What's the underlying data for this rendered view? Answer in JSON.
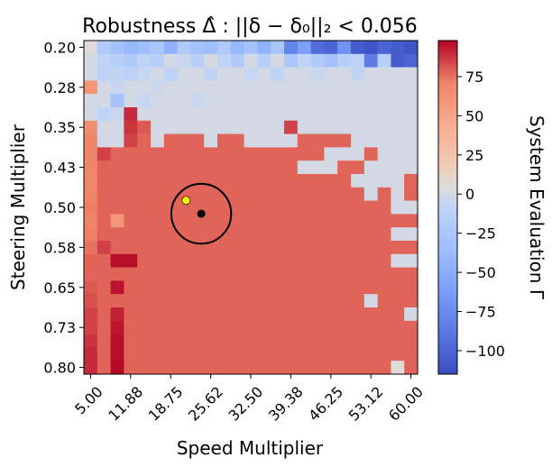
{
  "chart_data": {
    "type": "heatmap",
    "title": "Robustness Δ̂ : ||δ − δ₀||₂ < 0.056",
    "xlabel": "Speed Multiplier",
    "ylabel": "Steering Multiplier",
    "colorbar_label": "System Evaluation Γ",
    "colormap": "coolwarm",
    "x_tick_labels": [
      "5.00",
      "11.88",
      "18.75",
      "25.62",
      "32.50",
      "39.38",
      "46.25",
      "53.12",
      "60.00"
    ],
    "y_tick_labels": [
      "0.20",
      "0.28",
      "0.35",
      "0.43",
      "0.50",
      "0.58",
      "0.65",
      "0.73",
      "0.80"
    ],
    "x_range": [
      5.0,
      60.0
    ],
    "y_range": [
      0.2,
      0.8
    ],
    "grid_size": [
      25,
      25
    ],
    "color_range": [
      -115,
      98
    ],
    "colorbar_ticks": [
      75,
      50,
      25,
      0,
      -25,
      -50,
      -75,
      -100
    ],
    "colorbar_tick_labels": [
      "75",
      "50",
      "25",
      "0",
      "−25",
      "−50",
      "−75",
      "−100"
    ],
    "rows": [
      "WWWWWWWWWWWWWWWWWWWWWWWWW",
      "WWWWWWWWWWWWWWWWWWWWWWWWW",
      "WWWWWWWWWWWWWWWWWWWWWWWWW",
      "RWWWWWWWWWWWWWWWWWWWWWWWW",
      "WWWWWWWWWWWWWWWWWWWWWWWWW",
      "WWWRWWWWWWWWWWWWWWWWWWWWW",
      "RWWRRWWWWWWWWWWRWWWWWWWWW",
      "RWWRRWRRRWRRWWWWRRRRWWWWW",
      "RRRRRRRRRRRRRRRRRRWWWRWWW",
      "RRRRRRRRRRRRRRRRWWWRRWWWW",
      "RRRRRRRRRRRRRRRRRRRRWWWWR",
      "RRRRRRRRRRRRRRRRRRRRRWRWR",
      "RRRRRRRRRRRRRRRRRRRRRRRWW",
      "RRRRRRRRRRRRRRRRRRRRRRRRR",
      "RRRRRRRRRRRRRRRRRRRRRRRWW",
      "RRRRRRRRRRRRRRRRRRRRRRRRR",
      "RRRRRRRRRRRRRRRRRRRRRRRWW",
      "RRRRRRRRRRRRRRRRRRRRRRRRR",
      "RRRRRRRRRRRRRRRRRRRRRRRRR",
      "RRRRRRRRRRRRRRRRRRRRRWRRR",
      "RRRRRRRRRRRRRRRRRRRRRRRRW",
      "RRRRRRRRRRRRRRRRRRRRRRRRR",
      "RRRRRRRRRRRRRRRRRRRRRRRRR",
      "RRRRRRRRRRRRRRRRRRRRRRRRR",
      "RRRRRRRRRRRRRRRRRRRRRRRRR"
    ],
    "overrides": [
      {
        "r": 0,
        "c": 0,
        "v": 5
      },
      {
        "r": 0,
        "c": 1,
        "v": -20
      },
      {
        "r": 0,
        "c": 2,
        "v": -30
      },
      {
        "r": 0,
        "c": 3,
        "v": -40
      },
      {
        "r": 0,
        "c": 4,
        "v": -35
      },
      {
        "r": 0,
        "c": 5,
        "v": -25
      },
      {
        "r": 0,
        "c": 6,
        "v": -45
      },
      {
        "r": 0,
        "c": 7,
        "v": -20
      },
      {
        "r": 0,
        "c": 8,
        "v": -30
      },
      {
        "r": 0,
        "c": 9,
        "v": -35
      },
      {
        "r": 0,
        "c": 10,
        "v": -20
      },
      {
        "r": 0,
        "c": 11,
        "v": -40
      },
      {
        "r": 0,
        "c": 12,
        "v": -30
      },
      {
        "r": 0,
        "c": 13,
        "v": -45
      },
      {
        "r": 0,
        "c": 14,
        "v": -25
      },
      {
        "r": 0,
        "c": 15,
        "v": -80
      },
      {
        "r": 0,
        "c": 16,
        "v": -60
      },
      {
        "r": 0,
        "c": 17,
        "v": -95
      },
      {
        "r": 0,
        "c": 18,
        "v": -100
      },
      {
        "r": 0,
        "c": 19,
        "v": -70
      },
      {
        "r": 0,
        "c": 20,
        "v": -105
      },
      {
        "r": 0,
        "c": 21,
        "v": -110
      },
      {
        "r": 0,
        "c": 22,
        "v": -100
      },
      {
        "r": 0,
        "c": 23,
        "v": -105
      },
      {
        "r": 0,
        "c": 24,
        "v": -110
      },
      {
        "r": 1,
        "c": 1,
        "v": -10
      },
      {
        "r": 1,
        "c": 2,
        "v": -15
      },
      {
        "r": 1,
        "c": 3,
        "v": -20
      },
      {
        "r": 1,
        "c": 4,
        "v": -10
      },
      {
        "r": 1,
        "c": 5,
        "v": -15
      },
      {
        "r": 1,
        "c": 7,
        "v": -5
      },
      {
        "r": 1,
        "c": 8,
        "v": -15
      },
      {
        "r": 1,
        "c": 10,
        "v": -10
      },
      {
        "r": 1,
        "c": 11,
        "v": -20
      },
      {
        "r": 1,
        "c": 13,
        "v": -15
      },
      {
        "r": 1,
        "c": 15,
        "v": -25
      },
      {
        "r": 1,
        "c": 16,
        "v": -10
      },
      {
        "r": 1,
        "c": 17,
        "v": -20
      },
      {
        "r": 1,
        "c": 18,
        "v": -30
      },
      {
        "r": 1,
        "c": 19,
        "v": -15
      },
      {
        "r": 1,
        "c": 20,
        "v": -10
      },
      {
        "r": 1,
        "c": 21,
        "v": -85
      },
      {
        "r": 1,
        "c": 22,
        "v": -15
      },
      {
        "r": 1,
        "c": 23,
        "v": -105
      },
      {
        "r": 1,
        "c": 24,
        "v": -100
      },
      {
        "r": 2,
        "c": 1,
        "v": -12
      },
      {
        "r": 2,
        "c": 2,
        "v": -8
      },
      {
        "r": 2,
        "c": 3,
        "v": -12
      },
      {
        "r": 2,
        "c": 4,
        "v": -6
      },
      {
        "r": 2,
        "c": 6,
        "v": -10
      },
      {
        "r": 2,
        "c": 9,
        "v": -8
      },
      {
        "r": 2,
        "c": 12,
        "v": -6
      },
      {
        "r": 2,
        "c": 14,
        "v": -10
      },
      {
        "r": 2,
        "c": 17,
        "v": -5
      },
      {
        "r": 2,
        "c": 20,
        "v": -8
      },
      {
        "r": 3,
        "c": 0,
        "v": 60
      },
      {
        "r": 3,
        "c": 2,
        "v": -6
      },
      {
        "r": 3,
        "c": 5,
        "v": -4
      },
      {
        "r": 4,
        "c": 2,
        "v": -30
      },
      {
        "r": 4,
        "c": 4,
        "v": -6
      },
      {
        "r": 4,
        "c": 8,
        "v": -5
      },
      {
        "r": 5,
        "c": 1,
        "v": -10
      },
      {
        "r": 5,
        "c": 2,
        "v": -5
      },
      {
        "r": 5,
        "c": 3,
        "v": 90
      },
      {
        "r": 6,
        "c": 0,
        "v": 65
      },
      {
        "r": 6,
        "c": 3,
        "v": 88
      },
      {
        "r": 6,
        "c": 4,
        "v": 80
      },
      {
        "r": 6,
        "c": 15,
        "v": 85
      },
      {
        "r": 7,
        "c": 0,
        "v": 70
      },
      {
        "r": 7,
        "c": 3,
        "v": 85
      },
      {
        "r": 8,
        "c": 0,
        "v": 70
      },
      {
        "r": 8,
        "c": 1,
        "v": 85
      },
      {
        "r": 9,
        "c": 0,
        "v": 70
      },
      {
        "r": 10,
        "c": 0,
        "v": 68
      },
      {
        "r": 11,
        "c": 0,
        "v": 70
      },
      {
        "r": 12,
        "c": 0,
        "v": 72
      },
      {
        "r": 13,
        "c": 0,
        "v": 70
      },
      {
        "r": 13,
        "c": 2,
        "v": 60
      },
      {
        "r": 14,
        "c": 0,
        "v": 72
      },
      {
        "r": 15,
        "c": 0,
        "v": 75
      },
      {
        "r": 15,
        "c": 1,
        "v": 85
      },
      {
        "r": 16,
        "c": 0,
        "v": 78
      },
      {
        "r": 16,
        "c": 2,
        "v": 96
      },
      {
        "r": 16,
        "c": 3,
        "v": 96
      },
      {
        "r": 17,
        "c": 0,
        "v": 78
      },
      {
        "r": 18,
        "c": 0,
        "v": 80
      },
      {
        "r": 18,
        "c": 2,
        "v": 95
      },
      {
        "r": 19,
        "c": 0,
        "v": 82
      },
      {
        "r": 20,
        "c": 0,
        "v": 85
      },
      {
        "r": 20,
        "c": 2,
        "v": 92
      },
      {
        "r": 21,
        "c": 0,
        "v": 85
      },
      {
        "r": 21,
        "c": 2,
        "v": 94
      },
      {
        "r": 22,
        "c": 0,
        "v": 88
      },
      {
        "r": 22,
        "c": 2,
        "v": 96
      },
      {
        "r": 23,
        "c": 0,
        "v": 90
      },
      {
        "r": 23,
        "c": 2,
        "v": 96
      },
      {
        "r": 24,
        "c": 0,
        "v": 90
      },
      {
        "r": 24,
        "c": 2,
        "v": 97
      },
      {
        "r": 24,
        "c": 23,
        "v": 5
      }
    ],
    "marker_point": {
      "x": 24.0,
      "y": 0.512,
      "color": "#000000"
    },
    "marker_circle": {
      "x": 24.0,
      "y": 0.512,
      "radius": 0.056
    },
    "highlight_point": {
      "x": 21.4,
      "y": 0.487,
      "color": "#ffff00"
    }
  }
}
